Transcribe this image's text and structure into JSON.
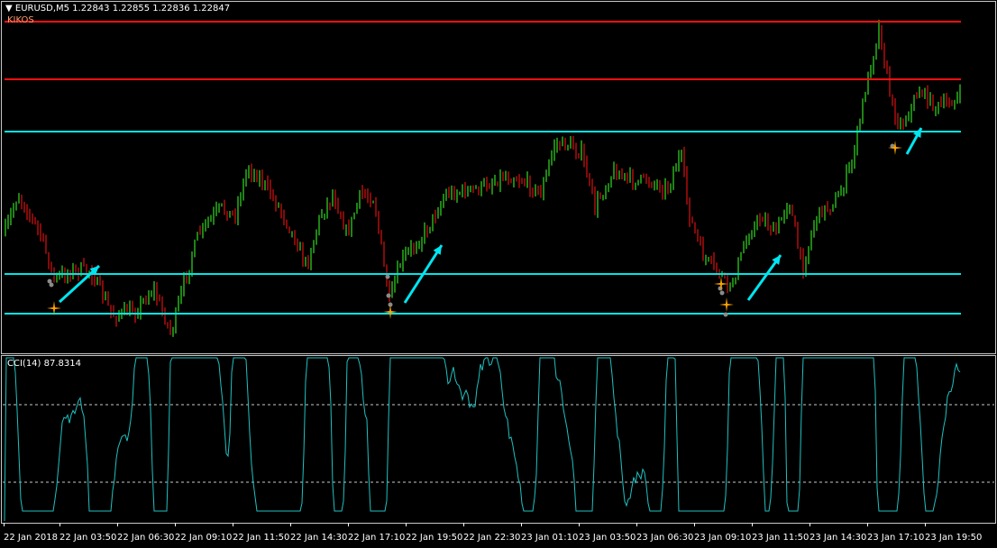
{
  "header": {
    "symbol_line": "EURUSD,M5  1.22843 1.22855 1.22836 1.22847",
    "indicator_name": "KIKOS"
  },
  "cci": {
    "label": "CCI(14) 87.8314"
  },
  "x_axis": [
    "22 Jan 2018",
    "22 Jan 03:50",
    "22 Jan 06:30",
    "22 Jan 09:10",
    "22 Jan 11:50",
    "22 Jan 14:30",
    "22 Jan 17:10",
    "22 Jan 19:50",
    "22 Jan 22:30",
    "23 Jan 01:10",
    "23 Jan 03:50",
    "23 Jan 06:30",
    "23 Jan 09:10",
    "23 Jan 11:50",
    "23 Jan 14:30",
    "23 Jan 17:10",
    "23 Jan 19:50"
  ],
  "colors": {
    "bull": "#33dd22",
    "bear": "#dd1111",
    "resistance": "#ff1010",
    "support": "#00e5e5",
    "arrow": "#00e5f0",
    "signal": "#ffa500",
    "cci_line": "#20c0c0"
  }
}
